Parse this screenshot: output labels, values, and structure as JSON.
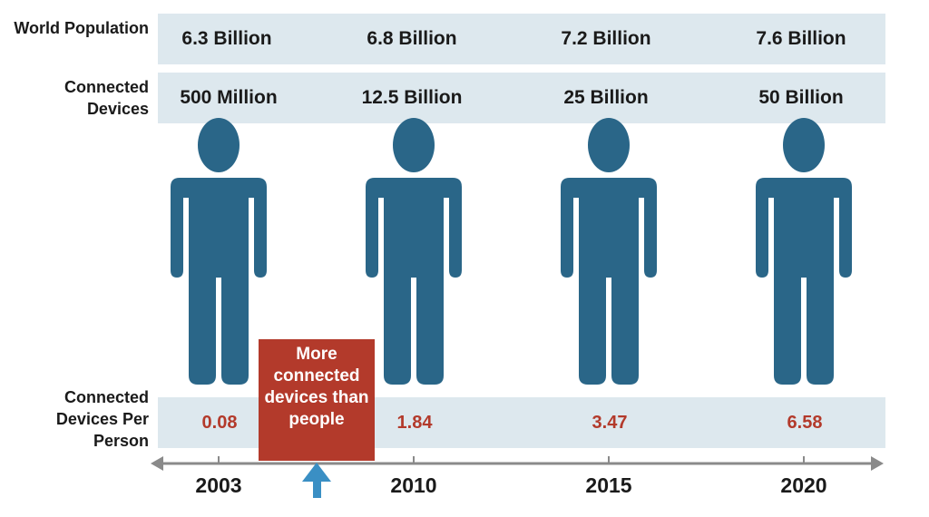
{
  "labels": {
    "world_population": "World Population",
    "connected_devices": "Connected Devices",
    "per_person": "Connected Devices Per Person"
  },
  "callout": "More connected devices than people",
  "colors": {
    "figure": "#2a6688",
    "ratio": "#b33a2b",
    "band": "#dde8ee",
    "callout": "#b33a2b",
    "arrow": "#3a8fc4",
    "axis": "#8a8a8a"
  },
  "chart_data": {
    "type": "table",
    "categories": [
      "2003",
      "2010",
      "2015",
      "2020"
    ],
    "series": [
      {
        "name": "World Population",
        "values": [
          "6.3 Billion",
          "6.8 Billion",
          "7.2 Billion",
          "7.6 Billion"
        ]
      },
      {
        "name": "Connected Devices",
        "values": [
          "500 Million",
          "12.5 Billion",
          "25 Billion",
          "50 Billion"
        ]
      },
      {
        "name": "Connected Devices Per Person",
        "values": [
          0.08,
          1.84,
          3.47,
          6.58
        ]
      }
    ],
    "annotation": "More connected devices than people"
  }
}
